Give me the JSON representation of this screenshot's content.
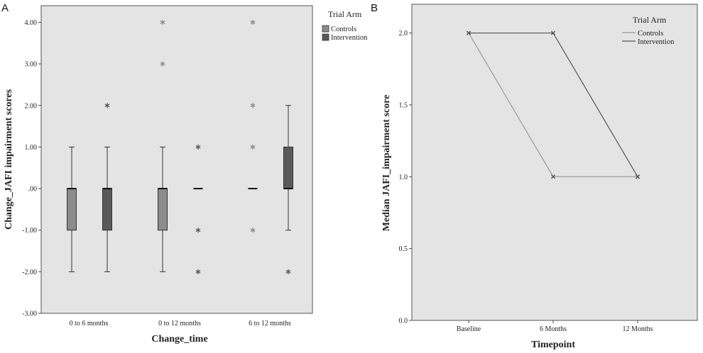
{
  "panels": {
    "a_letter": "A",
    "b_letter": "B"
  },
  "chart_data": [
    {
      "type": "box",
      "xlabel": "Change_time",
      "ylabel": "Change_JAFI impairment scores",
      "ylim": [
        -3,
        4.4
      ],
      "yticks": [
        "4.00",
        "3.00",
        "2.00",
        "1.00",
        ".00",
        "-1.00",
        "-2.00",
        "-3.00"
      ],
      "ytick_values": [
        4,
        3,
        2,
        1,
        0,
        -1,
        -2,
        -3
      ],
      "categories": [
        "0 to 6 months",
        "0 to 12 months",
        "6 to 12 months"
      ],
      "legend": {
        "title": "Trial Arm",
        "position": "top-right",
        "entries": [
          "Controls",
          "Intervention"
        ]
      },
      "series": [
        {
          "name": "Controls",
          "color": "#8c8c8c",
          "boxes": [
            {
              "category": "0 to 6 months",
              "min": -2,
              "q1": -1,
              "median": 0,
              "q3": 0,
              "max": 1,
              "extremes": []
            },
            {
              "category": "0 to 12 months",
              "min": -2,
              "q1": -1,
              "median": 0,
              "q3": 0,
              "max": 1,
              "extremes": [
                3,
                4
              ]
            },
            {
              "category": "6 to 12 months",
              "min": 0,
              "q1": 0,
              "median": 0,
              "q3": 0,
              "max": 0,
              "extremes": [
                4,
                2,
                1,
                -1
              ]
            }
          ]
        },
        {
          "name": "Intervention",
          "color": "#595959",
          "boxes": [
            {
              "category": "0 to 6 months",
              "min": -2,
              "q1": -1,
              "median": 0,
              "q3": 0,
              "max": 1,
              "extremes": [
                2
              ]
            },
            {
              "category": "0 to 12 months",
              "min": 0,
              "q1": 0,
              "median": 0,
              "q3": 0,
              "max": 0,
              "extremes": [
                1,
                -1,
                -2
              ]
            },
            {
              "category": "6 to 12 months",
              "min": -1,
              "q1": 0,
              "median": 0,
              "q3": 1,
              "max": 2,
              "extremes": [
                -2
              ]
            }
          ]
        }
      ],
      "grid": false
    },
    {
      "type": "line",
      "xlabel": "Timepoint",
      "ylabel": "Median JAFI_impairment score",
      "ylim": [
        0,
        2.2
      ],
      "yticks": [
        "2.0",
        "1.5",
        "1.0",
        "0.5",
        "0.0"
      ],
      "ytick_values": [
        2,
        1.5,
        1,
        0.5,
        0
      ],
      "categories": [
        "Baseline",
        "6 Months",
        "12 Months"
      ],
      "legend": {
        "title": "Trial Arm",
        "position": "top-right",
        "entries": [
          "Controls",
          "Intervention"
        ]
      },
      "series": [
        {
          "name": "Controls",
          "color": "#9a9a9a",
          "values": [
            2.0,
            1.0,
            1.0
          ]
        },
        {
          "name": "Intervention",
          "color": "#555555",
          "values": [
            2.0,
            2.0,
            1.0
          ]
        }
      ],
      "grid": false
    }
  ]
}
